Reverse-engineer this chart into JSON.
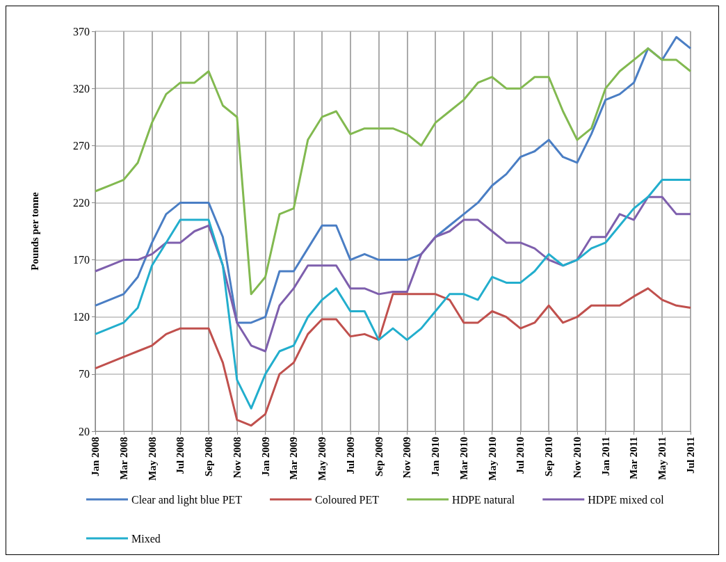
{
  "chart_data": {
    "type": "line",
    "ylabel": "Pounds per tonne",
    "categories": [
      "Jan 2008",
      null,
      "Mar 2008",
      null,
      "May 2008",
      null,
      "Jul 2008",
      null,
      "Sep 2008",
      null,
      "Nov 2008",
      null,
      "Jan 2009",
      null,
      "Mar 2009",
      null,
      "May 2009",
      null,
      "Jul 2009",
      null,
      "Sep 2009",
      null,
      "Nov 2009",
      null,
      "Jan 2010",
      null,
      "Mar 2010",
      null,
      "May 2010",
      null,
      "Jul 2010",
      null,
      "Sep 2010",
      null,
      "Nov 2010",
      null,
      "Jan 2011",
      null,
      "Mar 2011",
      null,
      "May 2011",
      null,
      "Jul 2011"
    ],
    "series": [
      {
        "name": "Clear and light blue PET",
        "color": "#4a7ec4",
        "values": [
          130,
          135,
          140,
          155,
          185,
          210,
          220,
          220,
          220,
          190,
          115,
          115,
          120,
          160,
          160,
          180,
          200,
          200,
          170,
          175,
          170,
          170,
          170,
          175,
          190,
          200,
          210,
          220,
          235,
          245,
          260,
          265,
          275,
          260,
          255,
          280,
          310,
          315,
          325,
          355,
          345,
          365,
          355
        ]
      },
      {
        "name": "Coloured PET",
        "color": "#c0504d",
        "values": [
          75,
          80,
          85,
          90,
          95,
          105,
          110,
          110,
          110,
          80,
          30,
          25,
          35,
          70,
          80,
          105,
          118,
          118,
          103,
          105,
          100,
          140,
          140,
          140,
          140,
          135,
          115,
          115,
          125,
          120,
          110,
          115,
          130,
          115,
          120,
          130,
          130,
          130,
          138,
          145,
          135,
          130,
          128
        ]
      },
      {
        "name": "HDPE natural",
        "color": "#82b950",
        "values": [
          230,
          235,
          240,
          255,
          290,
          315,
          325,
          325,
          335,
          305,
          295,
          140,
          155,
          210,
          215,
          275,
          295,
          300,
          280,
          285,
          285,
          285,
          280,
          270,
          290,
          300,
          310,
          325,
          330,
          320,
          320,
          330,
          330,
          300,
          275,
          285,
          320,
          335,
          345,
          355,
          345,
          345,
          335
        ]
      },
      {
        "name": "HDPE mixed col",
        "color": "#7e5fad",
        "values": [
          160,
          165,
          170,
          170,
          175,
          185,
          185,
          195,
          200,
          165,
          115,
          95,
          90,
          130,
          145,
          165,
          165,
          165,
          145,
          145,
          140,
          142,
          142,
          175,
          190,
          195,
          205,
          205,
          195,
          185,
          185,
          180,
          170,
          165,
          170,
          190,
          190,
          210,
          205,
          225,
          225,
          210,
          210
        ]
      },
      {
        "name": "Mixed",
        "color": "#22aecd",
        "values": [
          105,
          110,
          115,
          128,
          165,
          185,
          205,
          205,
          205,
          165,
          65,
          40,
          70,
          90,
          95,
          120,
          135,
          145,
          125,
          125,
          100,
          110,
          100,
          110,
          125,
          140,
          140,
          135,
          155,
          150,
          150,
          160,
          175,
          165,
          170,
          180,
          185,
          200,
          215,
          225,
          240,
          240,
          240
        ]
      }
    ],
    "ylim": [
      20,
      370
    ],
    "yticks": [
      20,
      70,
      120,
      170,
      220,
      270,
      320,
      370
    ],
    "grid": true,
    "legend": "bottom",
    "marker": "none",
    "line_style": "solid"
  }
}
